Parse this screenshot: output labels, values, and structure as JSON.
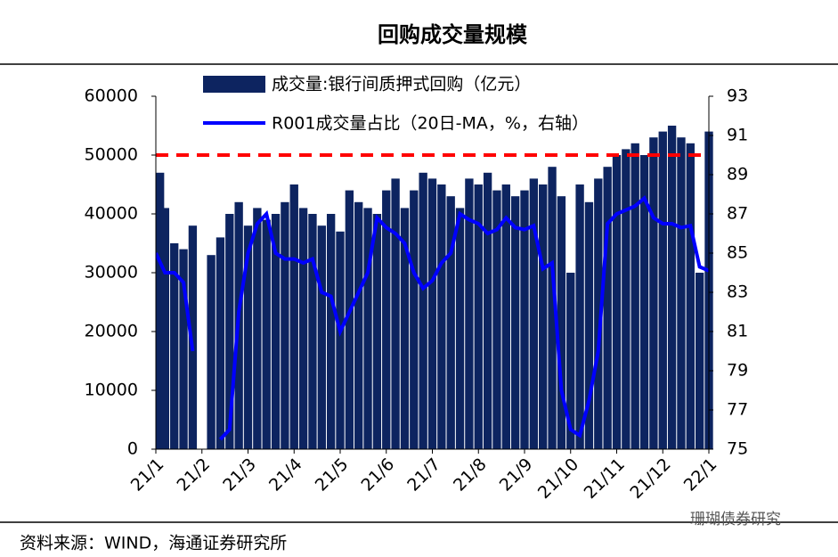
{
  "chart_data": {
    "type": "bar_line",
    "title": "回购成交量规模",
    "source": "资料来源：WIND，海通证券研究所",
    "watermark": "珊瑚债券研究",
    "categories": [
      "21/1",
      null,
      null,
      null,
      null,
      "21/2",
      null,
      null,
      null,
      null,
      "21/3",
      null,
      null,
      null,
      null,
      "21/4",
      null,
      null,
      null,
      null,
      "21/5",
      null,
      null,
      null,
      null,
      "21/6",
      null,
      null,
      null,
      null,
      "21/7",
      null,
      null,
      null,
      null,
      "21/8",
      null,
      null,
      null,
      null,
      "21/9",
      null,
      null,
      null,
      null,
      "21/10",
      null,
      null,
      null,
      null,
      "21/11",
      null,
      null,
      null,
      null,
      "21/12",
      null,
      null,
      null,
      null,
      "22/1"
    ],
    "series": [
      {
        "name": "成交量:银行间质押式回购（亿元）",
        "color": "#0d2460",
        "values": [
          47000,
          41000,
          35000,
          34000,
          38000,
          0,
          33000,
          36000,
          40000,
          42000,
          38000,
          41000,
          39000,
          40000,
          42000,
          45000,
          41000,
          40000,
          38000,
          40000,
          37000,
          44000,
          42000,
          41000,
          40000,
          44000,
          46000,
          41000,
          44000,
          47000,
          46000,
          45000,
          43000,
          41000,
          46000,
          45000,
          47000,
          44000,
          45000,
          43000,
          44000,
          46000,
          45000,
          48000,
          43000,
          30000,
          45000,
          42000,
          46000,
          48000,
          50000,
          51000,
          52000,
          50000,
          53000,
          54000,
          55000,
          53000,
          52000,
          30000,
          54000
        ]
      },
      {
        "name": "R001成交量占比（20日-MA，%，右轴）",
        "color": "#0000ff",
        "axis": "y2",
        "values": [
          85,
          84,
          84,
          83.5,
          80,
          null,
          null,
          75.5,
          76,
          82,
          85,
          86.5,
          87,
          85,
          84.7,
          84.7,
          84.5,
          84.7,
          83,
          82.8,
          81,
          82,
          83,
          84,
          86.8,
          86.3,
          86,
          85.5,
          84,
          83.2,
          83.6,
          84.5,
          85,
          87,
          86.7,
          86.5,
          86,
          86.2,
          86.8,
          86.3,
          86.2,
          86.4,
          84.2,
          84.5,
          78,
          76,
          75.7,
          77.5,
          80,
          86.5,
          87,
          87.2,
          87.4,
          87.8,
          86.8,
          86.5,
          86.5,
          86.3,
          86.4,
          84.3,
          84.1
        ]
      }
    ],
    "reference_line": {
      "value": 50000,
      "color": "#ff0000"
    },
    "ylim": [
      0,
      60000
    ],
    "yticks": [
      0,
      10000,
      20000,
      30000,
      40000,
      50000,
      60000
    ],
    "y2lim": [
      75,
      93
    ],
    "y2ticks": [
      75,
      77,
      79,
      81,
      83,
      85,
      87,
      89,
      91,
      93
    ]
  }
}
